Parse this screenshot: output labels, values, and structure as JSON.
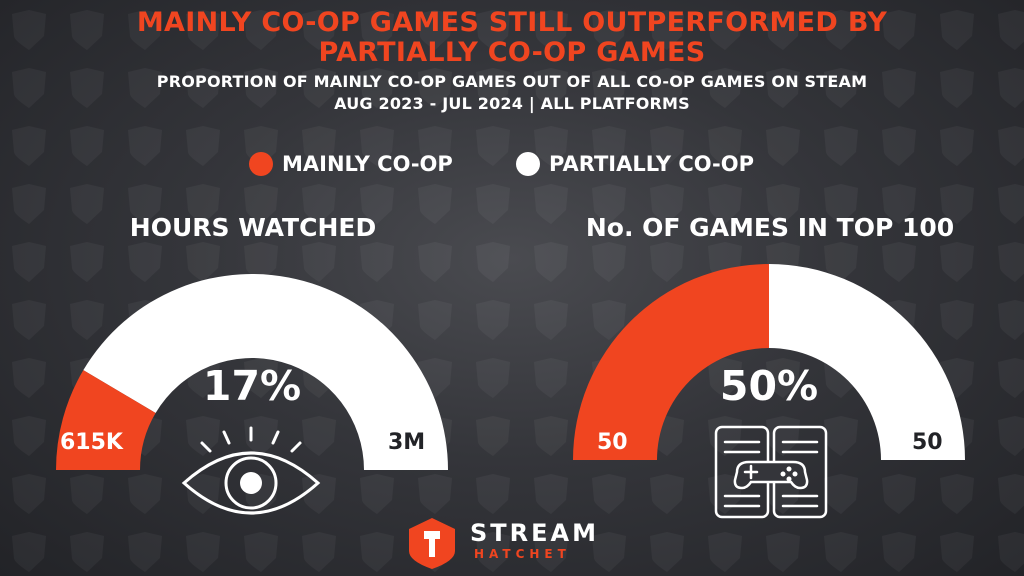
{
  "header": {
    "title_line1": "MAINLY CO-OP GAMES STILL OUTPERFORMED BY",
    "title_line2": "PARTIALLY CO-OP GAMES",
    "subtitle_line1": "PROPORTION OF MAINLY CO-OP GAMES OUT OF ALL CO-OP GAMES ON STEAM",
    "subtitle_line2": "AUG 2023 - JUL 2024 | ALL PLATFORMS"
  },
  "legend": [
    {
      "label": "MAINLY CO-OP",
      "color": "#f04520"
    },
    {
      "label": "PARTIALLY CO-OP",
      "color": "#ffffff"
    }
  ],
  "chart_data": [
    {
      "type": "pie",
      "style": "half-donut gauge",
      "title": "HOURS WATCHED",
      "percent_label": "17%",
      "values": [
        0.615,
        3
      ],
      "value_labels": [
        "615K",
        "3M"
      ],
      "series_names": [
        "MAINLY CO-OP",
        "PARTIALLY CO-OP"
      ],
      "colors": [
        "#f04520",
        "#ffffff"
      ],
      "icon": "eye-icon"
    },
    {
      "type": "pie",
      "style": "half-donut gauge",
      "title": "No. OF GAMES IN TOP 100",
      "percent_label": "50%",
      "values": [
        50,
        50
      ],
      "value_labels": [
        "50",
        "50"
      ],
      "series_names": [
        "MAINLY CO-OP",
        "PARTIALLY CO-OP"
      ],
      "colors": [
        "#f04520",
        "#ffffff"
      ],
      "icon": "gamepad-book-icon"
    }
  ],
  "brand": {
    "name": "STREAM",
    "sub": "HATCHET",
    "logo_icon": "stream-hatchet-logo-icon"
  }
}
